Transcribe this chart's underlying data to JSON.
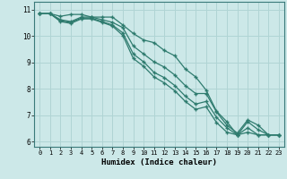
{
  "title": "",
  "xlabel": "Humidex (Indice chaleur)",
  "bg_color": "#cce8e8",
  "line_color": "#2e7b6e",
  "grid_color": "#b0d4d4",
  "xlim": [
    -0.5,
    23.5
  ],
  "ylim": [
    5.8,
    11.3
  ],
  "yticks": [
    6,
    7,
    8,
    9,
    10,
    11
  ],
  "xticks": [
    0,
    1,
    2,
    3,
    4,
    5,
    6,
    7,
    8,
    9,
    10,
    11,
    12,
    13,
    14,
    15,
    16,
    17,
    18,
    19,
    20,
    21,
    22,
    23
  ],
  "lines": [
    [
      10.85,
      10.85,
      10.75,
      10.82,
      10.82,
      10.72,
      10.72,
      10.72,
      10.42,
      10.1,
      9.85,
      9.75,
      9.45,
      9.25,
      8.75,
      8.45,
      7.95,
      7.15,
      6.75,
      6.25,
      6.75,
      6.45,
      6.25,
      6.25
    ],
    [
      10.85,
      10.85,
      10.62,
      10.55,
      10.72,
      10.72,
      10.62,
      10.52,
      10.32,
      9.62,
      9.32,
      9.02,
      8.82,
      8.52,
      8.12,
      7.82,
      7.82,
      7.12,
      6.62,
      6.32,
      6.82,
      6.62,
      6.25,
      6.25
    ],
    [
      10.85,
      10.85,
      10.58,
      10.52,
      10.68,
      10.68,
      10.55,
      10.42,
      10.12,
      9.32,
      9.02,
      8.62,
      8.42,
      8.12,
      7.72,
      7.42,
      7.52,
      6.92,
      6.52,
      6.25,
      6.52,
      6.25,
      6.25,
      6.25
    ],
    [
      10.85,
      10.85,
      10.55,
      10.48,
      10.65,
      10.65,
      10.52,
      10.38,
      10.02,
      9.15,
      8.85,
      8.45,
      8.22,
      7.92,
      7.52,
      7.22,
      7.32,
      6.72,
      6.35,
      6.25,
      6.35,
      6.25,
      6.25,
      6.25
    ]
  ]
}
